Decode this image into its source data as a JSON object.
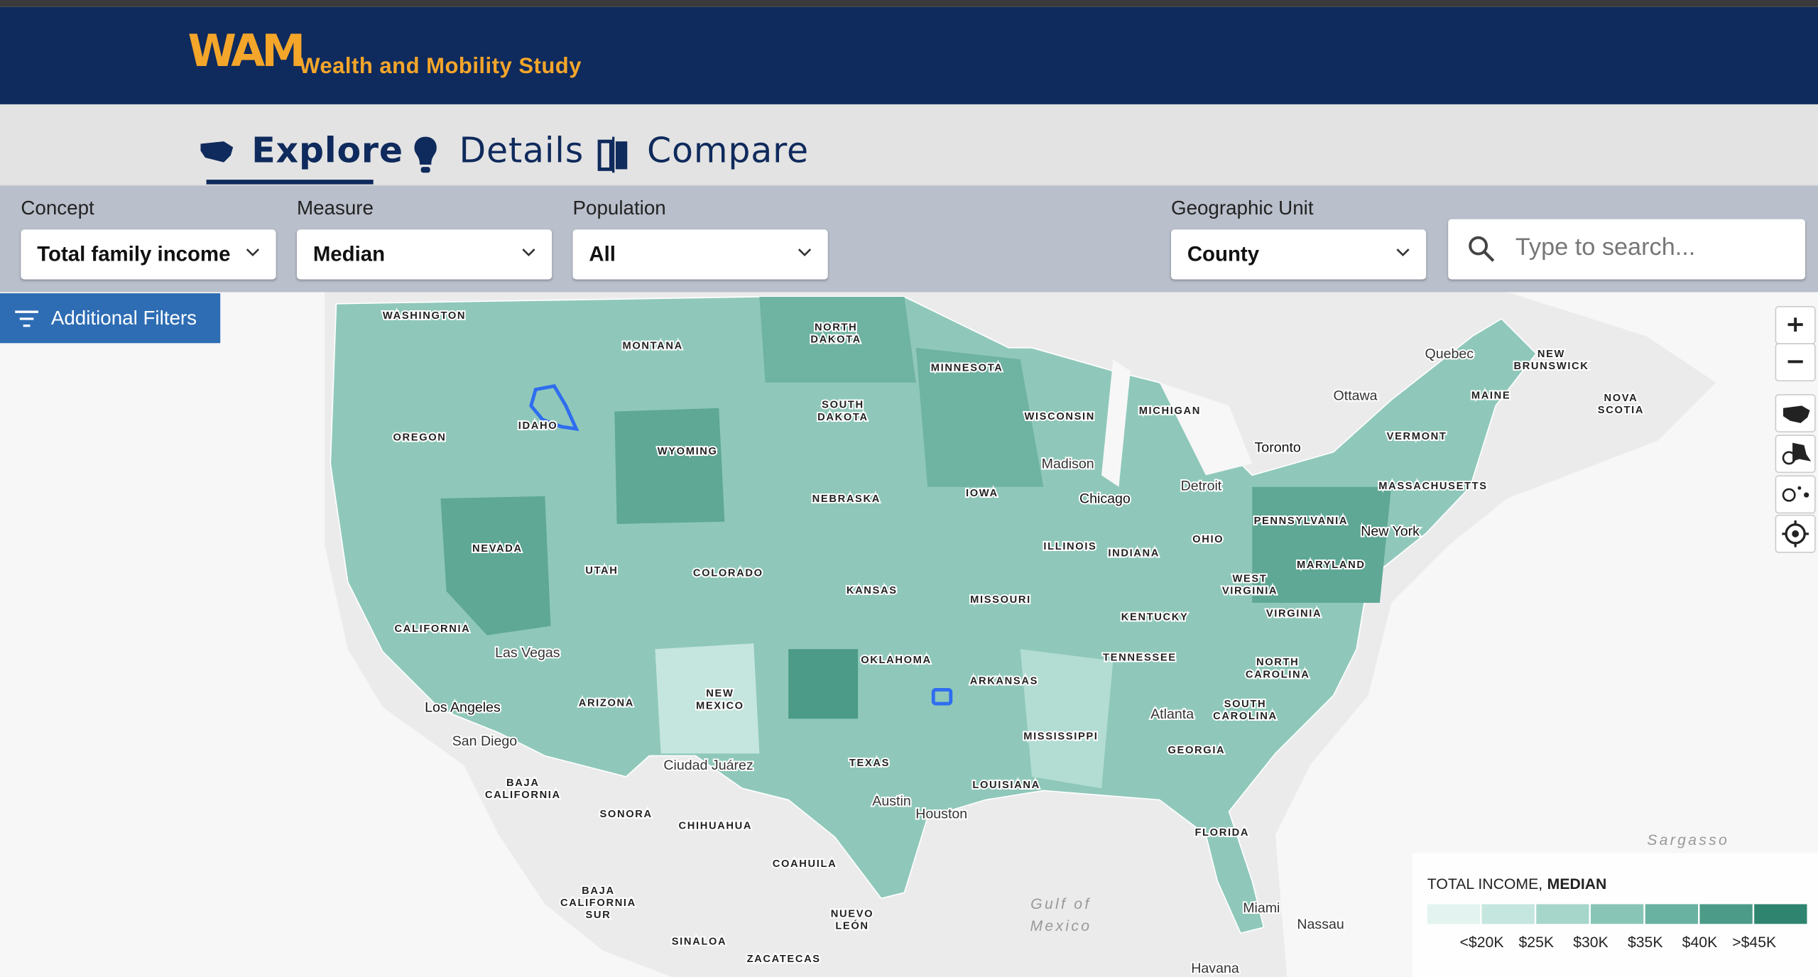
{
  "header": {
    "logo": "WAM",
    "title": "Wealth and Mobility Study"
  },
  "tabs": [
    {
      "label": "Explore",
      "active": true
    },
    {
      "label": "Details",
      "active": false
    },
    {
      "label": "Compare",
      "active": false
    }
  ],
  "filters": [
    {
      "label": "Concept",
      "value": "Total family income"
    },
    {
      "label": "Measure",
      "value": "Median"
    },
    {
      "label": "Population",
      "value": "All"
    },
    {
      "label": "Geographic Unit",
      "value": "County"
    }
  ],
  "search": {
    "placeholder": "Type to search..."
  },
  "additional_filters": "Additional Filters",
  "map": {
    "state_labels": [
      [
        "WASHINGTON"
      ],
      [
        "MONTANA"
      ],
      [
        "NORTH",
        "DAKOTA"
      ],
      [
        "MINNESOTA"
      ],
      [
        "OREGON"
      ],
      [
        "IDAHO"
      ],
      [
        "SOUTH",
        "DAKOTA"
      ],
      [
        "WISCONSIN"
      ],
      [
        "MICHIGAN"
      ],
      [
        "WYOMING"
      ],
      [
        "NEBRASKA"
      ],
      [
        "IOWA"
      ],
      [
        "NEVADA"
      ],
      [
        "UTAH"
      ],
      [
        "COLORADO"
      ],
      [
        "ILLINOIS"
      ],
      [
        "INDIANA"
      ],
      [
        "OHIO"
      ],
      [
        "PENNSYLVANIA"
      ],
      [
        "KANSAS"
      ],
      [
        "MISSOURI"
      ],
      [
        "WEST",
        "VIRGINIA"
      ],
      [
        "MARYLAND"
      ],
      [
        "VIRGINIA"
      ],
      [
        "KENTUCKY"
      ],
      [
        "CALIFORNIA"
      ],
      [
        "OKLAHOMA"
      ],
      [
        "TENNESSEE"
      ],
      [
        "NORTH",
        "CAROLINA"
      ],
      [
        "ARKANSAS"
      ],
      [
        "ARIZONA"
      ],
      [
        "NEW",
        "MEXICO"
      ],
      [
        "SOUTH",
        "CAROLINA"
      ],
      [
        "MISSISSIPPI"
      ],
      [
        "GEORGIA"
      ],
      [
        "TEXAS"
      ],
      [
        "LOUISIANA"
      ],
      [
        "FLORIDA"
      ],
      [
        "MAINE"
      ],
      [
        "VERMONT"
      ],
      [
        "MASSACHUSETTS"
      ],
      [
        "NEW",
        "BRUNSWICK"
      ],
      [
        "NOVA",
        "SCOTIA"
      ],
      [
        "BAJA",
        "CALIFORNIA"
      ],
      [
        "SONORA"
      ],
      [
        "CHIHUAHUA"
      ],
      [
        "COAHUILA"
      ],
      [
        "BAJA",
        "CALIFORNIA",
        "SUR"
      ],
      [
        "NUEVO",
        "LEÓN"
      ],
      [
        "SINALOA"
      ],
      [
        "ZACATECAS"
      ]
    ],
    "place_labels": [
      "Quebec",
      "Ottawa",
      "Toronto",
      "Madison",
      "Detroit",
      "Chicago",
      "New York",
      "Las Vegas",
      "Los Angeles",
      "San Diego",
      "Ciudad Juárez",
      "Atlanta",
      "Austin",
      "Houston",
      "Miami",
      "Nassau",
      "Havana"
    ],
    "water_labels": [
      [
        "Sargasso"
      ],
      [
        "Gulf of",
        "Mexico"
      ]
    ]
  },
  "legend": {
    "title": "TOTAL INCOME,",
    "title_emphasis": "MEDIAN",
    "colors": [
      "#e3f4f0",
      "#c5e6de",
      "#a6d6ca",
      "#88c5b6",
      "#69b1a0",
      "#4b9b88",
      "#2f8470"
    ],
    "labels": [
      "<$20K",
      "$25K",
      "$30K",
      "$35K",
      "$40K",
      ">$45K"
    ]
  }
}
